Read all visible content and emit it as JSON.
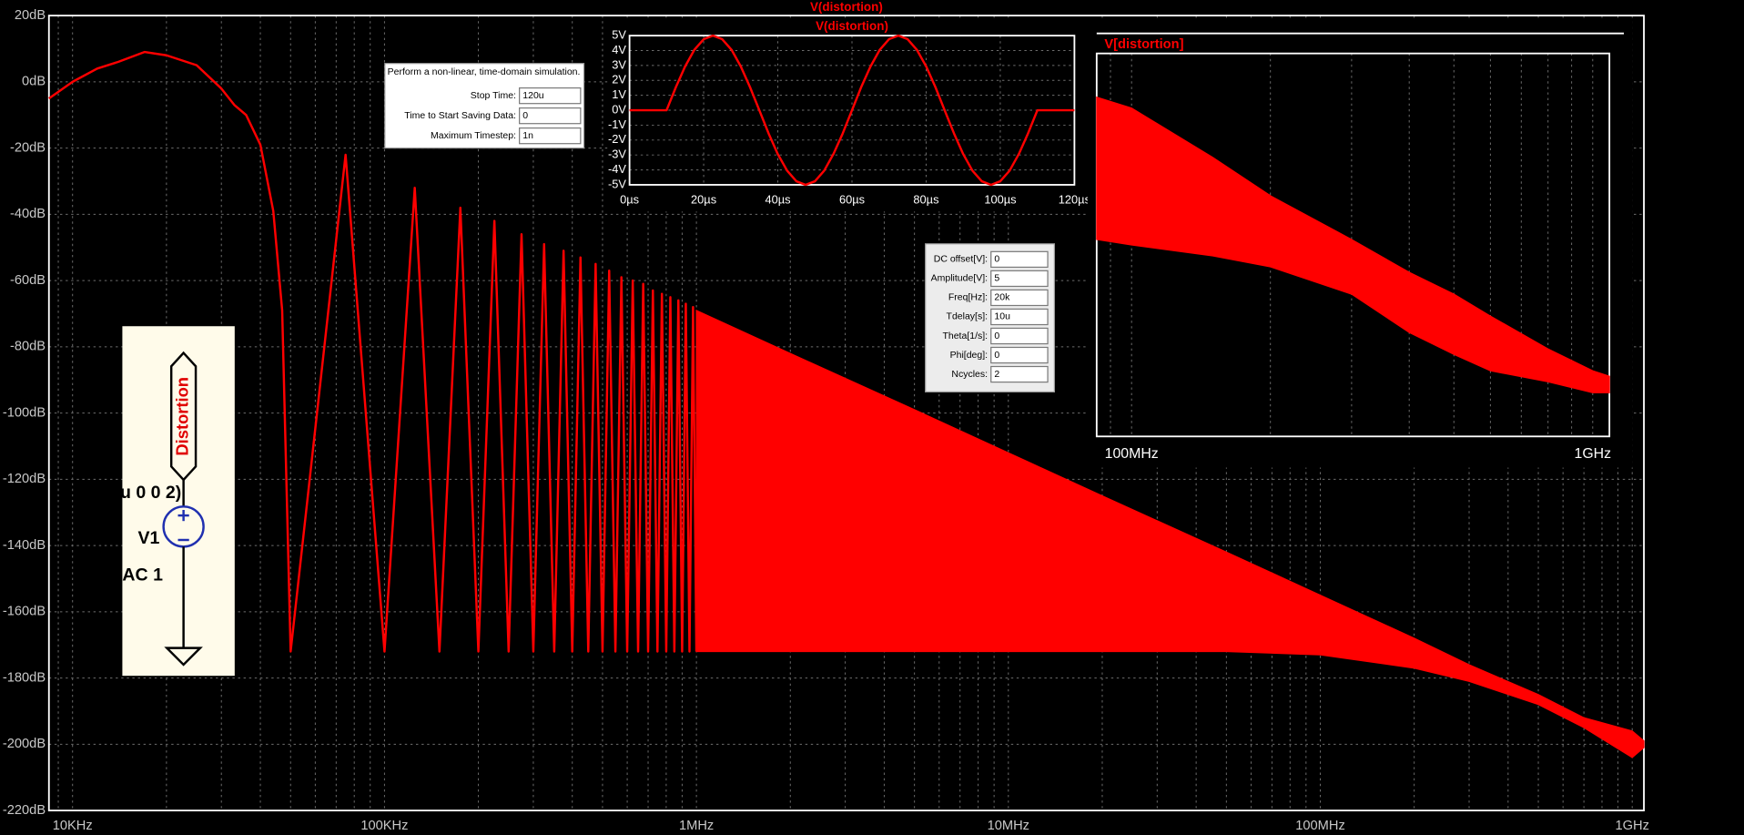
{
  "chart_data": [
    {
      "type": "line",
      "title": "V(distortion)",
      "color": "#ff0000",
      "x": [
        8400,
        10000,
        12000,
        14000,
        17000,
        20000,
        25000,
        30000,
        33000,
        36000,
        40000,
        44000,
        47000,
        50000,
        75000,
        100000,
        125000,
        150000,
        175000,
        200000,
        225000,
        250000,
        275000,
        300000,
        325000,
        350000,
        375000,
        400000,
        425000,
        450000,
        475000,
        500000,
        525000,
        550000,
        575000,
        600000,
        625000,
        650000,
        675000,
        700000,
        725000,
        750000,
        775000,
        800000,
        825000,
        850000,
        875000,
        900000,
        925000,
        950000,
        975000,
        1000000
      ],
      "values": [
        -5,
        0,
        4,
        6,
        9,
        8,
        5,
        -2,
        -7,
        -10,
        -19,
        -39,
        -69,
        -172,
        -22,
        -172,
        -32,
        -172,
        -38,
        -172,
        -42,
        -172,
        -46,
        -172,
        -49,
        -172,
        -51,
        -172,
        -53,
        -172,
        -55,
        -172,
        -57,
        -172,
        -59,
        -172,
        -60,
        -172,
        -61,
        -172,
        -63,
        -172,
        -64,
        -172,
        -65,
        -172,
        -66,
        -172,
        -67,
        -172,
        -68,
        -172
      ],
      "band": {
        "x": [
          1000000,
          2000000,
          5000000,
          10000000,
          20000000,
          50000000,
          100000000,
          200000000,
          300000000,
          500000000,
          700000000,
          1000000000,
          1090000000
        ],
        "upper": [
          -69,
          -82,
          -99,
          -112,
          -125,
          -142,
          -155,
          -168,
          -176,
          -185,
          -192,
          -196,
          -199
        ],
        "lower": [
          -172,
          -172,
          -172,
          -172,
          -172,
          -172,
          -173,
          -177,
          -181,
          -188,
          -195,
          -204,
          -201
        ]
      },
      "xlim": [
        8400,
        1090000000
      ],
      "xlog": true,
      "xticks": [
        {
          "value": 10000,
          "label": "10KHz"
        },
        {
          "value": 100000,
          "label": "100KHz"
        },
        {
          "value": 1000000,
          "label": "1MHz"
        },
        {
          "value": 10000000,
          "label": "10MHz"
        },
        {
          "value": 100000000,
          "label": "100MHz"
        },
        {
          "value": 1000000000,
          "label": "1GHz"
        }
      ],
      "ylim": [
        -220,
        20
      ],
      "yticks": [
        {
          "value": 20,
          "label": "20dB"
        },
        {
          "value": 0,
          "label": "0dB"
        },
        {
          "value": -20,
          "label": "-20dB"
        },
        {
          "value": -40,
          "label": "-40dB"
        },
        {
          "value": -60,
          "label": "-60dB"
        },
        {
          "value": -80,
          "label": "-80dB"
        },
        {
          "value": -100,
          "label": "-100dB"
        },
        {
          "value": -120,
          "label": "-120dB"
        },
        {
          "value": -140,
          "label": "-140dB"
        },
        {
          "value": -160,
          "label": "-160dB"
        },
        {
          "value": -180,
          "label": "-180dB"
        },
        {
          "value": -200,
          "label": "-200dB"
        },
        {
          "value": -220,
          "label": "-220dB"
        }
      ],
      "grid": true,
      "minor_grid": true
    },
    {
      "type": "line",
      "title": "V(distortion)",
      "color": "#ff0000",
      "x": [
        0,
        10,
        12.5,
        15,
        17.5,
        20,
        22.5,
        25,
        27.5,
        30,
        32.5,
        35,
        37.5,
        40,
        42.5,
        45,
        47.5,
        50,
        52.5,
        55,
        57.5,
        60,
        62.5,
        65,
        67.5,
        70,
        72.5,
        75,
        77.5,
        80,
        82.5,
        85,
        87.5,
        90,
        92.5,
        95,
        97.5,
        100,
        102.5,
        105,
        107.5,
        110,
        120
      ],
      "values": [
        0,
        0,
        1.55,
        2.94,
        4.05,
        4.76,
        5,
        4.76,
        4.05,
        2.94,
        1.55,
        0,
        -1.55,
        -2.94,
        -4.05,
        -4.76,
        -5,
        -4.76,
        -4.05,
        -2.94,
        -1.55,
        0,
        1.55,
        2.94,
        4.05,
        4.76,
        5,
        4.76,
        4.05,
        2.94,
        1.55,
        0,
        -1.55,
        -2.94,
        -4.05,
        -4.76,
        -5,
        -4.76,
        -4.05,
        -2.94,
        -1.55,
        0,
        0
      ],
      "xlim": [
        0,
        120
      ],
      "xticks": [
        {
          "value": 0,
          "label": "0µs"
        },
        {
          "value": 20,
          "label": "20µs"
        },
        {
          "value": 40,
          "label": "40µs"
        },
        {
          "value": 60,
          "label": "60µs"
        },
        {
          "value": 80,
          "label": "80µs"
        },
        {
          "value": 100,
          "label": "100µs"
        },
        {
          "value": 120,
          "label": "120µs"
        }
      ],
      "ylim": [
        -5,
        5
      ],
      "yticks": [
        {
          "value": 5,
          "label": "5V"
        },
        {
          "value": 4,
          "label": "4V"
        },
        {
          "value": 3,
          "label": "3V"
        },
        {
          "value": 2,
          "label": "2V"
        },
        {
          "value": 1,
          "label": "1V"
        },
        {
          "value": 0,
          "label": "0V"
        },
        {
          "value": -1,
          "label": "-1V"
        },
        {
          "value": -2,
          "label": "-2V"
        },
        {
          "value": -3,
          "label": "-3V"
        },
        {
          "value": -4,
          "label": "-4V"
        },
        {
          "value": -5,
          "label": "-5V"
        }
      ],
      "grid": true
    },
    {
      "type": "area",
      "title": "V[distortion]",
      "color": "#ff0000",
      "band": {
        "x": [
          84000000,
          100000000,
          150000000,
          200000000,
          300000000,
          400000000,
          500000000,
          600000000,
          800000000,
          1000000000,
          1087000000
        ],
        "upper": [
          -148,
          -150,
          -159,
          -166,
          -174,
          -180,
          -184,
          -188,
          -194,
          -198,
          -199
        ],
        "lower": [
          -174,
          -175,
          -177,
          -179,
          -184,
          -191,
          -195,
          -198,
          -200,
          -202,
          -202
        ]
      },
      "xlim": [
        84000000,
        1087000000
      ],
      "xlog": true,
      "xticks": [
        {
          "value": 100000000,
          "label": "100MHz"
        },
        {
          "value": 1000000000,
          "label": "1GHz"
        }
      ],
      "ylim": [
        -210,
        -140
      ],
      "grid": true,
      "minor_grid": true
    }
  ],
  "sim_dialog": {
    "title": "Perform a non-linear, time-domain simulation.",
    "fields": [
      {
        "label": "Stop Time:",
        "value": "120u"
      },
      {
        "label": "Time to Start Saving Data:",
        "value": "0"
      },
      {
        "label": "Maximum Timestep:",
        "value": "1n"
      }
    ]
  },
  "source_dialog": {
    "fields": [
      {
        "label": "DC offset[V]:",
        "value": "0"
      },
      {
        "label": "Amplitude[V]:",
        "value": "5"
      },
      {
        "label": "Freq[Hz]:",
        "value": "20k"
      },
      {
        "label": "Tdelay[s]:",
        "value": "10u"
      },
      {
        "label": "Theta[1/s]:",
        "value": "0"
      },
      {
        "label": "Phi[deg]:",
        "value": "0"
      },
      {
        "label": "Ncycles:",
        "value": "2"
      }
    ]
  },
  "schematic": {
    "net_label": "Distortion",
    "source_value": "u 0 0 2)",
    "source_name": "V1",
    "ac": "AC 1"
  }
}
